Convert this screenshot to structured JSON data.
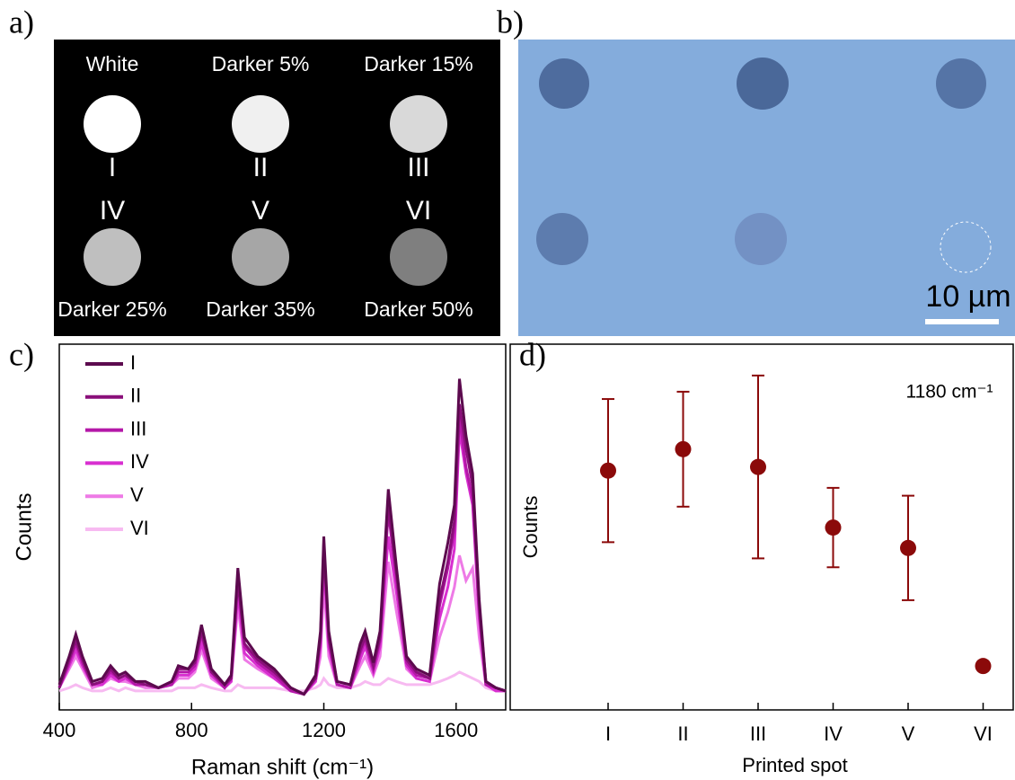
{
  "panel_labels": [
    "a)",
    "b)",
    "c)",
    "d)"
  ],
  "panel_a": {
    "spots": [
      {
        "name": "White",
        "numeral": "I",
        "color": "#ffffff"
      },
      {
        "name": "Darker 5%",
        "numeral": "II",
        "color": "#f0f0f0"
      },
      {
        "name": "Darker 15%",
        "numeral": "III",
        "color": "#d9d9d9"
      },
      {
        "name": "Darker 25%",
        "numeral": "IV",
        "color": "#bfbfbf"
      },
      {
        "name": "Darker 35%",
        "numeral": "V",
        "color": "#a6a6a6"
      },
      {
        "name": "Darker 50%",
        "numeral": "VI",
        "color": "#7f7f7f"
      }
    ]
  },
  "panel_b": {
    "scale_bar_label": "10 µm"
  },
  "chart_data": [
    {
      "type": "line",
      "xlabel": "Raman shift (cm⁻¹)",
      "ylabel": "Counts",
      "xlim": [
        400,
        1750
      ],
      "ylim": [
        -5,
        111
      ],
      "xticks": [
        400,
        800,
        1200,
        1600
      ],
      "legend": "upper left",
      "x": [
        400,
        430,
        450,
        470,
        500,
        530,
        555,
        580,
        600,
        630,
        660,
        700,
        740,
        760,
        790,
        810,
        830,
        860,
        900,
        920,
        940,
        960,
        1000,
        1050,
        1100,
        1140,
        1175,
        1190,
        1200,
        1215,
        1240,
        1280,
        1310,
        1325,
        1350,
        1370,
        1395,
        1420,
        1450,
        1480,
        1520,
        1550,
        1575,
        1595,
        1610,
        1630,
        1650,
        1670,
        1690,
        1720,
        1750
      ],
      "series": [
        {
          "name": "I",
          "color": "#5c0a4e",
          "values": [
            3,
            12,
            19,
            12,
            4,
            5,
            9,
            6,
            7,
            4,
            4,
            2,
            4,
            9,
            8,
            11,
            22,
            8,
            3,
            6,
            40,
            18,
            12,
            8,
            2,
            0,
            6,
            20,
            50,
            20,
            4,
            3,
            16,
            20,
            10,
            20,
            65,
            40,
            12,
            8,
            6,
            35,
            48,
            60,
            100,
            82,
            70,
            30,
            4,
            2,
            1
          ]
        },
        {
          "name": "II",
          "color": "#8a0f7a",
          "values": [
            2,
            11,
            17,
            11,
            3,
            4,
            8,
            5,
            6,
            4,
            3,
            2,
            4,
            8,
            8,
            10,
            20,
            7,
            3,
            5,
            36,
            16,
            11,
            7,
            2,
            0,
            5,
            18,
            46,
            18,
            4,
            3,
            14,
            18,
            9,
            18,
            60,
            38,
            11,
            7,
            5,
            30,
            42,
            55,
            92,
            78,
            66,
            28,
            4,
            2,
            1
          ]
        },
        {
          "name": "III",
          "color": "#b418a8",
          "values": [
            2,
            10,
            16,
            10,
            3,
            4,
            7,
            5,
            6,
            3,
            3,
            2,
            3,
            7,
            7,
            9,
            19,
            7,
            2,
            5,
            38,
            15,
            10,
            6,
            1,
            0,
            5,
            17,
            48,
            17,
            3,
            2,
            13,
            17,
            8,
            17,
            58,
            36,
            10,
            6,
            5,
            28,
            40,
            52,
            88,
            72,
            62,
            26,
            3,
            2,
            1
          ]
        },
        {
          "name": "IV",
          "color": "#d82fd0",
          "values": [
            2,
            9,
            14,
            9,
            3,
            3,
            6,
            4,
            5,
            3,
            3,
            2,
            3,
            6,
            6,
            8,
            16,
            6,
            2,
            4,
            32,
            13,
            9,
            5,
            1,
            0,
            4,
            15,
            42,
            15,
            3,
            2,
            11,
            15,
            7,
            15,
            50,
            32,
            9,
            5,
            4,
            24,
            34,
            46,
            84,
            70,
            60,
            24,
            3,
            1,
            1
          ]
        },
        {
          "name": "V",
          "color": "#ee7ae6",
          "values": [
            2,
            8,
            12,
            8,
            2,
            3,
            5,
            4,
            4,
            3,
            2,
            2,
            3,
            5,
            5,
            7,
            14,
            5,
            2,
            4,
            28,
            11,
            8,
            5,
            1,
            0,
            4,
            12,
            35,
            12,
            3,
            2,
            9,
            12,
            6,
            12,
            42,
            26,
            8,
            5,
            4,
            18,
            26,
            34,
            44,
            36,
            40,
            18,
            3,
            1,
            1
          ]
        },
        {
          "name": "VI",
          "color": "#f7baf1",
          "values": [
            1,
            2,
            3,
            2,
            1,
            1,
            2,
            1,
            2,
            1,
            1,
            1,
            1,
            2,
            2,
            2,
            3,
            2,
            1,
            1,
            3,
            2,
            2,
            2,
            1,
            1,
            2,
            3,
            5,
            3,
            2,
            2,
            3,
            4,
            3,
            3,
            5,
            4,
            3,
            3,
            3,
            4,
            5,
            6,
            7,
            6,
            5,
            4,
            2,
            1,
            1
          ]
        }
      ]
    },
    {
      "type": "scatter",
      "xlabel": "Printed spot",
      "ylabel": "Counts",
      "annotation": "1180 cm⁻¹",
      "ylim": [
        0,
        7
      ],
      "color": "#8b0a0a",
      "categories": [
        "I",
        "II",
        "III",
        "IV",
        "V",
        "VI"
      ],
      "values": [
        4.58,
        4.99,
        4.65,
        3.49,
        3.1,
        0.84
      ],
      "errors": [
        1.37,
        1.1,
        1.75,
        0.76,
        1.0,
        0
      ]
    }
  ]
}
